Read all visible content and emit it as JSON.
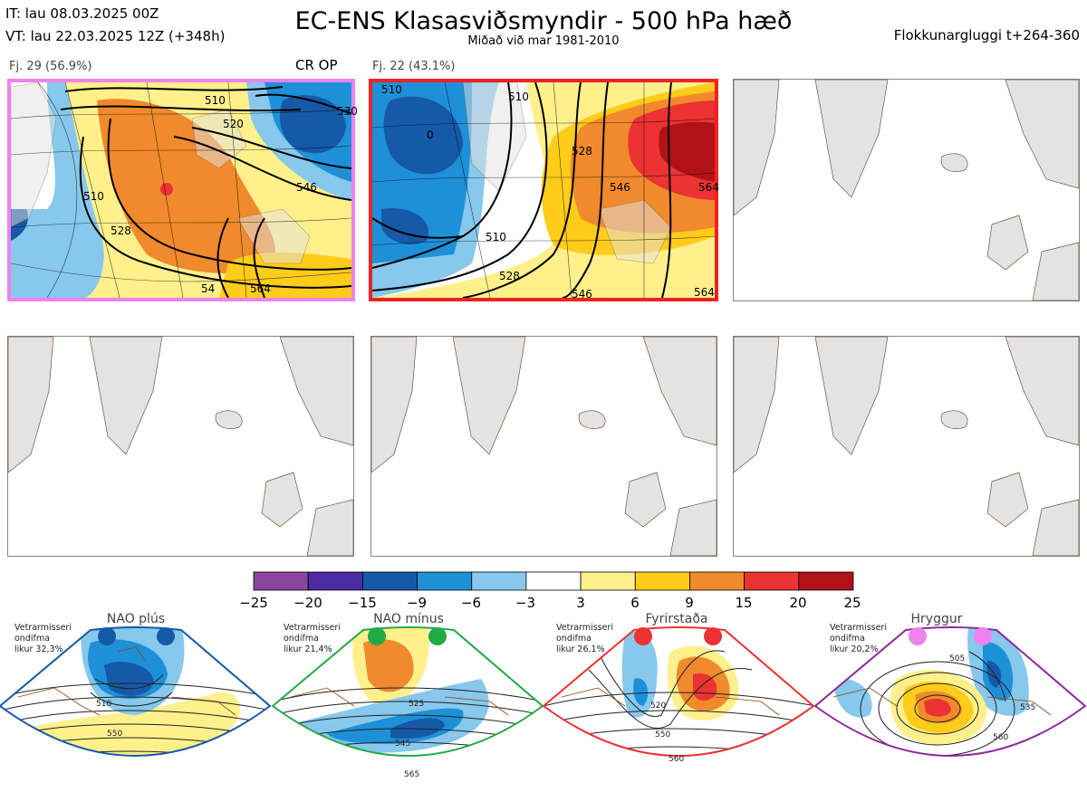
{
  "header": {
    "init_time": "IT: lau 08.03.2025 00Z",
    "valid_time": "VT: lau 22.03.2025 12Z  (+348h)",
    "title": "EC-ENS Klasasviðsmyndir - 500 hPa hæð",
    "subtitle": "Miðað við mar 1981-2010",
    "window": "Flokkunargluggi t+264-360"
  },
  "clusters": [
    {
      "label": "Fj. 29 (56.9%)",
      "members_label": "CR OP",
      "border_color": "#ee82ee",
      "contour_labels": [
        "510",
        "520",
        "530",
        "546",
        "510",
        "528",
        "54",
        "564"
      ]
    },
    {
      "label": "Fj. 22 (43.1%)",
      "members_label": "",
      "border_color": "#ee2222",
      "contour_labels": [
        "510",
        "510",
        "528",
        "546",
        "564",
        "0",
        "510",
        "528",
        "546",
        "564"
      ]
    }
  ],
  "colorbar": {
    "ticks": [
      "−25",
      "−20",
      "−15",
      "−9",
      "−6",
      "−3",
      "3",
      "6",
      "9",
      "15",
      "20",
      "25"
    ],
    "colors": [
      "#8b44a0",
      "#4b2ca0",
      "#1659a8",
      "#1e90d8",
      "#87c8ec",
      "#ffffff",
      "#fff08c",
      "#ffcc1a",
      "#f08a2c",
      "#ec3232",
      "#b01218"
    ]
  },
  "regimes": [
    {
      "name": "NAO plús",
      "info": [
        "Vetrarmisseri",
        "ondifma",
        "likur 32,3%"
      ],
      "color": "#1659a8",
      "contour_labels": [
        "510",
        "550"
      ]
    },
    {
      "name": "NAO mínus",
      "info": [
        "Vetrarmisseri",
        "ondifma",
        "likur 21,4%"
      ],
      "color": "#22aa44",
      "contour_labels": [
        "525",
        "545",
        "565"
      ]
    },
    {
      "name": "Fyrirstaða",
      "info": [
        "Vetrarmisseri",
        "ondifma",
        "likur 26,1%"
      ],
      "color": "#ec3232",
      "contour_labels": [
        "520",
        "550",
        "560"
      ]
    },
    {
      "name": "Hryggur",
      "info": [
        "Vetrarmisseri",
        "ondifma",
        "likur 20,2%"
      ],
      "color": "#ee82ee",
      "contour_labels": [
        "505",
        "535",
        "560"
      ]
    }
  ]
}
